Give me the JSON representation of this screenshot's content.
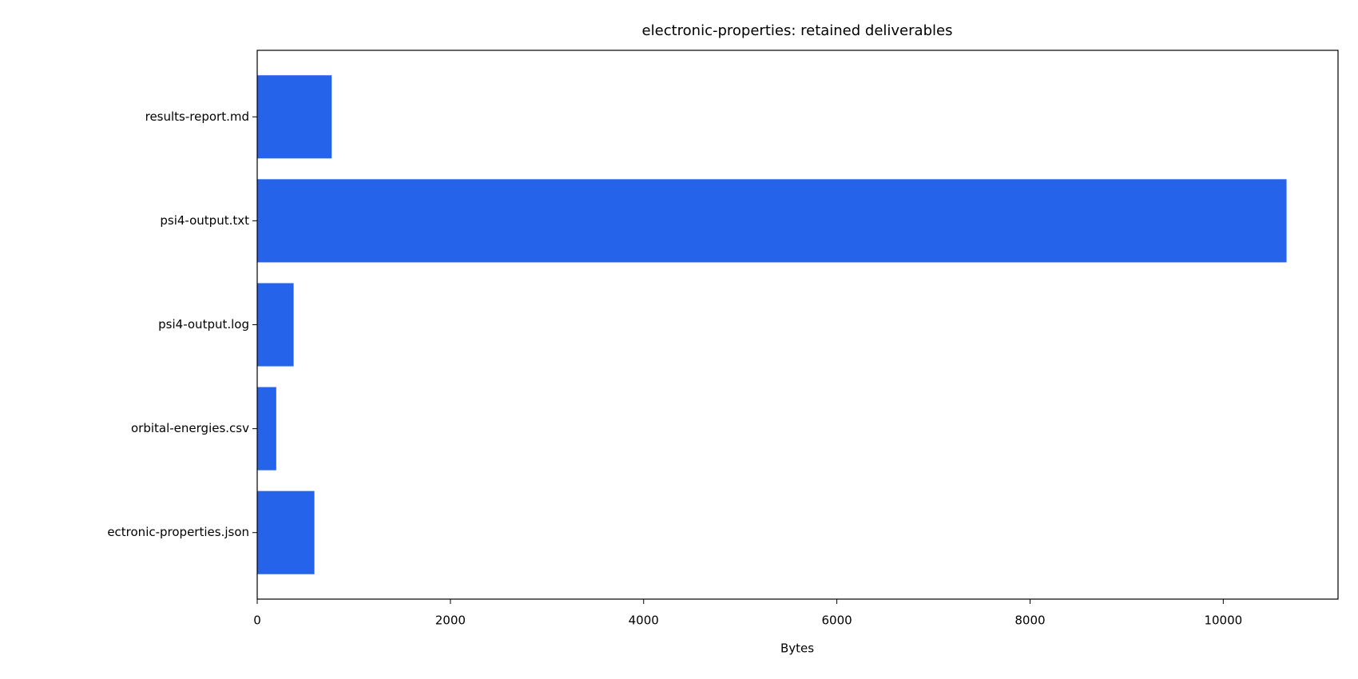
{
  "chart_data": {
    "type": "barh",
    "title": "electronic-properties: retained deliverables",
    "x_label": "Bytes",
    "categories": [
      "results-report.md",
      "psi4-output.txt",
      "psi4-output.log",
      "orbital-energies.csv",
      "ectronic-properties.json"
    ],
    "values": [
      771,
      10655,
      377,
      197,
      592
    ],
    "color": "#2563eb",
    "xlim": [
      0,
      11188
    ],
    "xticks": [
      0,
      2000,
      4000,
      6000,
      8000,
      10000
    ]
  }
}
